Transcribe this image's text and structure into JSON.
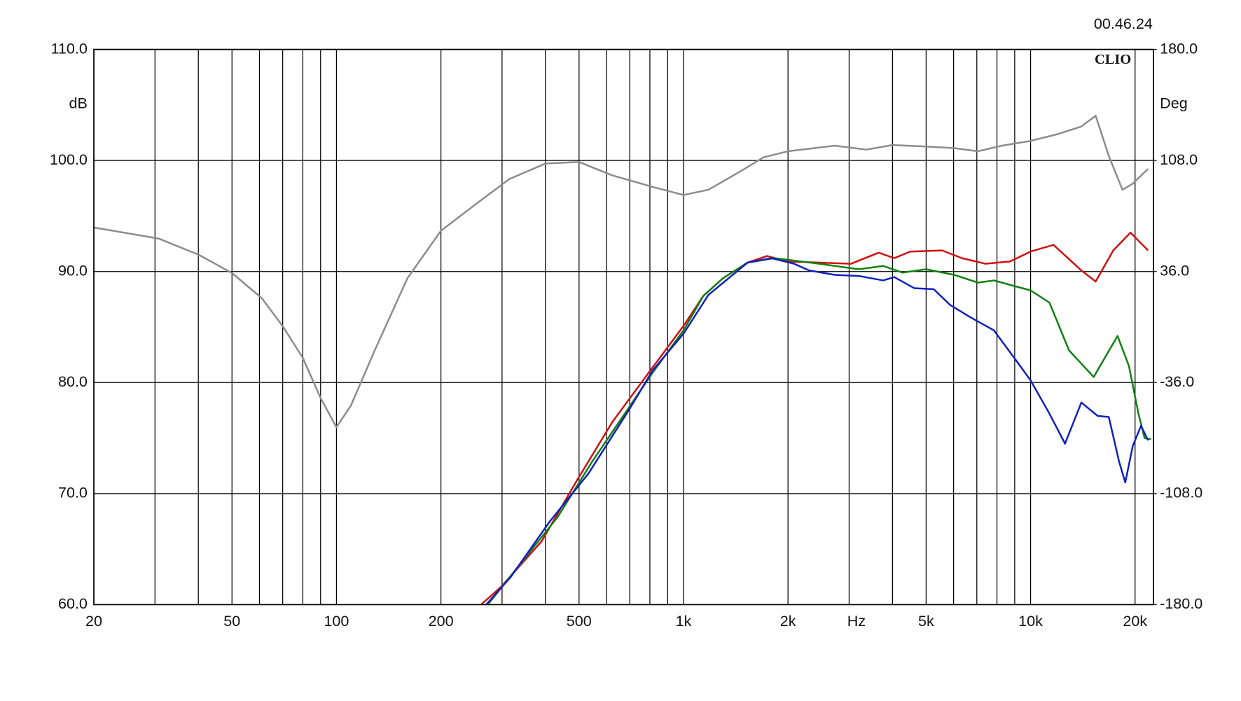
{
  "chart_data": {
    "type": "line",
    "title": "00.46.24",
    "brand": "CLIO",
    "xlabel": "Hz",
    "ylabel": "dB",
    "y2label": "Deg",
    "xscale": "log",
    "xlim": [
      20,
      22600
    ],
    "xticks": [
      20,
      50,
      100,
      200,
      500,
      {
        "value": 1000,
        "label": "1k"
      },
      {
        "value": 2000,
        "label": "2k"
      },
      {
        "value": 5000,
        "label": "5k"
      },
      {
        "value": 10000,
        "label": "10k"
      },
      {
        "value": 20000,
        "label": "20k"
      }
    ],
    "xminor": [
      30,
      40,
      60,
      70,
      80,
      90,
      300,
      400,
      600,
      700,
      800,
      900,
      3000,
      4000,
      6000,
      7000,
      8000,
      9000
    ],
    "ylim": [
      60,
      110
    ],
    "yticks": [
      {
        "value": 60,
        "label": "60.0"
      },
      {
        "value": 70,
        "label": "70.0"
      },
      {
        "value": 80,
        "label": "80.0"
      },
      {
        "value": 90,
        "label": "90.0"
      },
      {
        "value": 100,
        "label": "100.0"
      },
      {
        "value": 110,
        "label": "110.0"
      }
    ],
    "y2lim": [
      -180,
      180
    ],
    "y2ticks": [
      {
        "value": -180,
        "label": "-180.0"
      },
      {
        "value": -108,
        "label": "-108.0"
      },
      {
        "value": -36,
        "label": "-36.0"
      },
      {
        "value": 36,
        "label": "36.0"
      },
      {
        "value": 108,
        "label": "108.0"
      },
      {
        "value": 180,
        "label": "180.0"
      }
    ],
    "grid": true,
    "series": [
      {
        "color": "#8c8c8c",
        "axis": "y2",
        "x": [
          20,
          30.8,
          40,
          50,
          61,
          70,
          80,
          90,
          100,
          110,
          129,
          160,
          200,
          255,
          315,
          400,
          500,
          620,
          815,
          1000,
          1180,
          1460,
          1700,
          2000,
          2730,
          3360,
          4000,
          5000,
          6020,
          7050,
          8280,
          10000,
          11950,
          14000,
          15400,
          16800,
          18400,
          19700,
          21800
        ],
        "values": [
          64.5,
          57.3,
          47,
          35,
          18.6,
          0.5,
          -20,
          -46,
          -65,
          -51,
          -15,
          31.5,
          62.4,
          80.5,
          96,
          106,
          107,
          98.5,
          90.8,
          85.6,
          89,
          101,
          110,
          114,
          117.6,
          115,
          118,
          117,
          116,
          114,
          117.6,
          120.7,
          125,
          130,
          137,
          111,
          89,
          93,
          102.6
        ]
      },
      {
        "color": "#d01010",
        "x": [
          261,
          298,
          390,
          491,
          625,
          790,
          1000,
          1140,
          1300,
          1530,
          1740,
          1990,
          2460,
          3040,
          3650,
          4050,
          4500,
          5560,
          6340,
          7400,
          8720,
          10000,
          11640,
          14000,
          15400,
          17300,
          19400,
          21800
        ],
        "values": [
          60,
          61.6,
          65.7,
          71.1,
          76.5,
          80.8,
          85.1,
          87.8,
          89.4,
          90.8,
          91.4,
          90.9,
          90.8,
          90.7,
          91.7,
          91.2,
          91.8,
          91.9,
          91.2,
          90.7,
          90.9,
          91.8,
          92.4,
          90.1,
          89.1,
          91.9,
          93.5,
          91.9
        ]
      },
      {
        "color": "#108010",
        "x": [
          273,
          434,
          546,
          815,
          1000,
          1140,
          1300,
          1530,
          1830,
          2460,
          3200,
          3760,
          4280,
          5000,
          6020,
          7050,
          7840,
          8950,
          10000,
          11330,
          12900,
          15200,
          17800,
          19200,
          20450,
          21300,
          22200
        ],
        "values": [
          60,
          67.9,
          72.9,
          80.9,
          84.7,
          87.8,
          89.4,
          90.8,
          91.2,
          90.7,
          90.2,
          90.5,
          89.9,
          90.2,
          89.7,
          89,
          89.2,
          88.7,
          88.3,
          87.2,
          82.9,
          80.5,
          84.2,
          81.5,
          77.2,
          75,
          74.9
        ]
      },
      {
        "color": "#1020c0",
        "x": [
          270,
          318,
          412,
          532,
          695,
          815,
          1000,
          1180,
          1530,
          1790,
          2080,
          2300,
          2730,
          3200,
          3760,
          4050,
          4620,
          5260,
          5860,
          6690,
          7840,
          9180,
          10000,
          11330,
          12570,
          14000,
          15600,
          16800,
          17980,
          18740,
          19700,
          20800,
          21800
        ],
        "values": [
          60,
          62.5,
          67.5,
          71.8,
          77.5,
          81.1,
          84.4,
          87.9,
          90.8,
          91.2,
          90.7,
          90.1,
          89.7,
          89.6,
          89.2,
          89.5,
          88.5,
          88.4,
          87,
          85.9,
          84.7,
          81.8,
          80.2,
          77.2,
          74.5,
          78.2,
          77,
          76.9,
          72.9,
          71,
          74.3,
          76.1,
          74.8
        ]
      }
    ]
  }
}
